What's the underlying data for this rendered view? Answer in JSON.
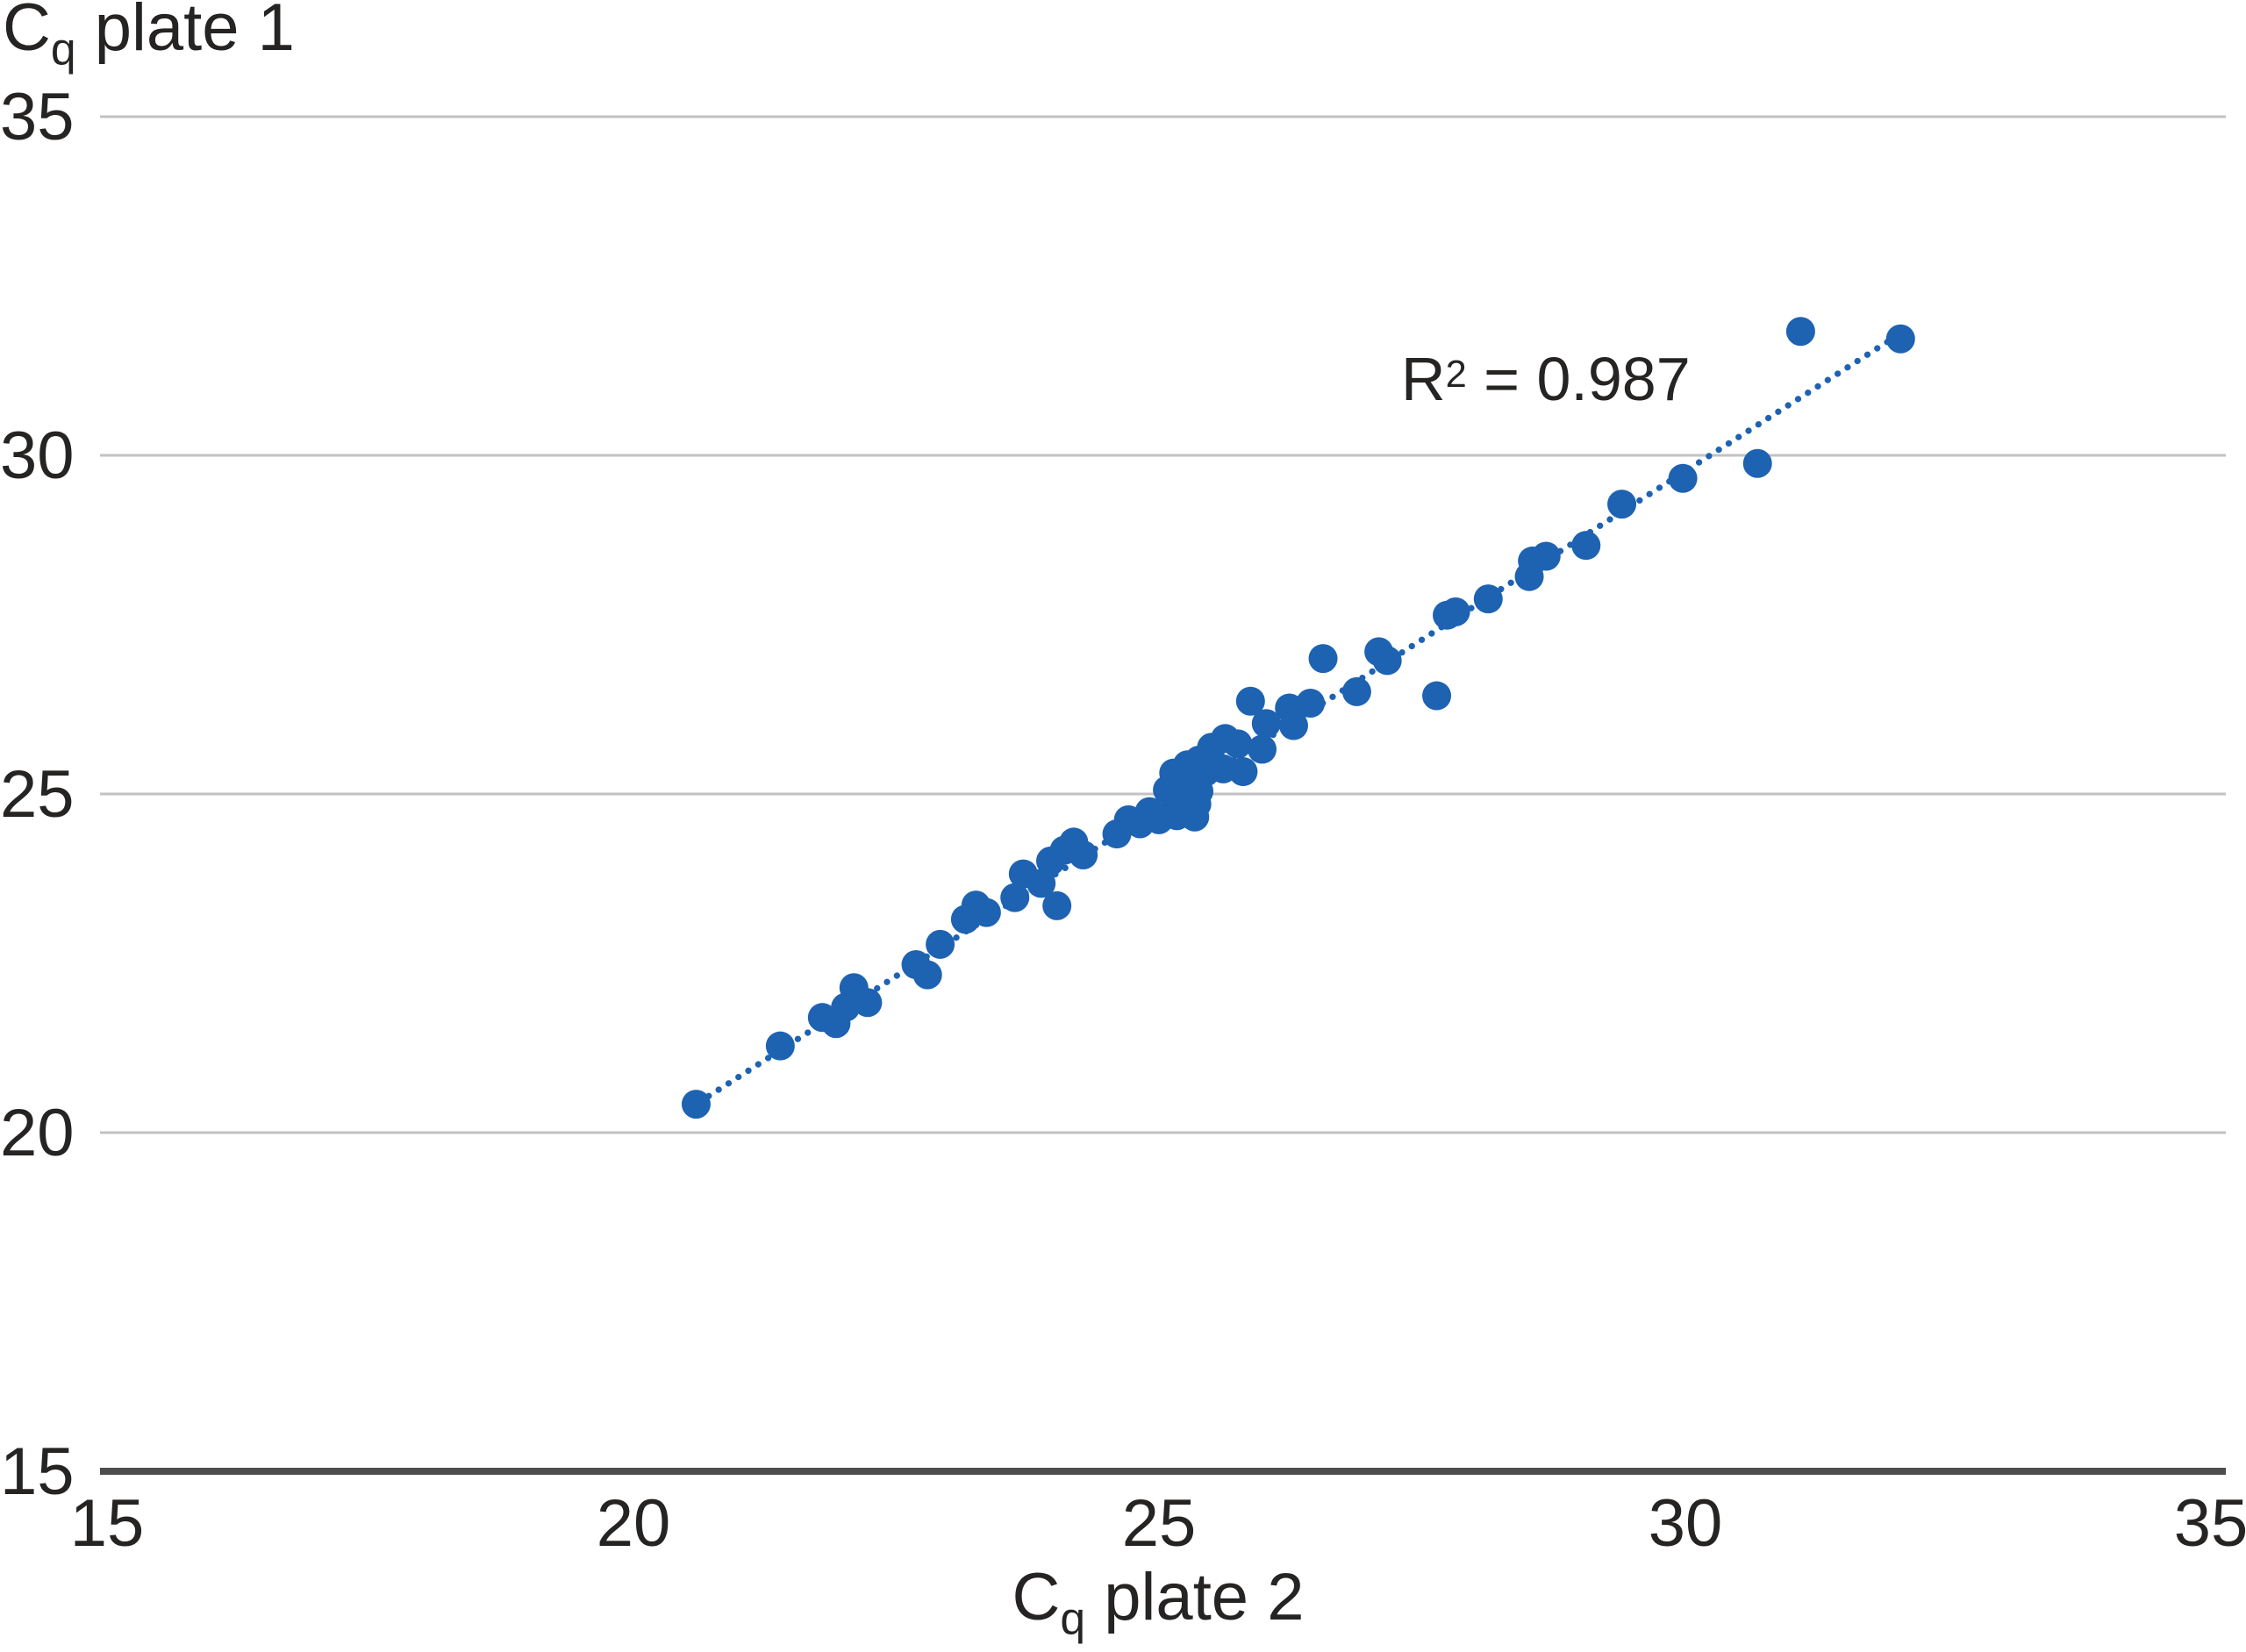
{
  "chart_data": {
    "type": "scatter",
    "title": "",
    "xlabel": "Cq plate 2",
    "ylabel": "Cq plate 1",
    "xlabel_parts": {
      "base": "C",
      "sub": "q",
      "rest": " plate 2"
    },
    "ylabel_parts": {
      "base": "C",
      "sub": "q",
      "rest": " plate 1"
    },
    "annotation": {
      "full_text": "R2 = 0.987",
      "base": "R",
      "sup": "2",
      "rest": " = 0.987",
      "x": 27.3,
      "y": 30.9
    },
    "xlim": [
      15,
      35
    ],
    "ylim": [
      15,
      35
    ],
    "xticks": [
      15,
      20,
      25,
      30,
      35
    ],
    "yticks": [
      15,
      20,
      25,
      30,
      35
    ],
    "grid": "horizontal",
    "legend": "none",
    "colors": {
      "point": "#1e62b2",
      "trendline": "#1e62b2",
      "gridline": "#c2c2c2",
      "axis_line": "#4d4d4d",
      "text": "#262423"
    },
    "trendline": {
      "style": "dotted",
      "x1": 20.72,
      "y1": 20.54,
      "x2": 31.98,
      "y2": 31.73,
      "r_squared": 0.987
    },
    "points": [
      [
        20.6,
        20.42
      ],
      [
        21.4,
        21.28
      ],
      [
        21.8,
        21.7
      ],
      [
        21.93,
        21.61
      ],
      [
        22.02,
        21.85
      ],
      [
        22.1,
        22.14
      ],
      [
        22.23,
        21.92
      ],
      [
        22.69,
        22.48
      ],
      [
        22.8,
        22.33
      ],
      [
        22.92,
        22.78
      ],
      [
        23.16,
        23.15
      ],
      [
        23.26,
        23.36
      ],
      [
        23.36,
        23.25
      ],
      [
        23.63,
        23.47
      ],
      [
        23.71,
        23.82
      ],
      [
        23.88,
        23.68
      ],
      [
        23.97,
        24.01
      ],
      [
        24.03,
        23.35
      ],
      [
        24.1,
        24.17
      ],
      [
        24.19,
        24.29
      ],
      [
        24.28,
        24.1
      ],
      [
        24.6,
        24.41
      ],
      [
        24.71,
        24.62
      ],
      [
        24.82,
        24.56
      ],
      [
        24.91,
        24.74
      ],
      [
        25.0,
        24.62
      ],
      [
        25.08,
        25.06
      ],
      [
        25.14,
        25.31
      ],
      [
        25.17,
        24.68
      ],
      [
        25.21,
        24.81
      ],
      [
        25.21,
        25.19
      ],
      [
        25.27,
        25.43
      ],
      [
        25.34,
        24.66
      ],
      [
        25.36,
        24.85
      ],
      [
        25.38,
        25.04
      ],
      [
        25.38,
        25.5
      ],
      [
        25.44,
        25.32
      ],
      [
        25.5,
        25.69
      ],
      [
        25.61,
        25.37
      ],
      [
        25.63,
        25.82
      ],
      [
        25.75,
        25.74
      ],
      [
        25.8,
        25.33
      ],
      [
        25.87,
        26.37
      ],
      [
        25.98,
        25.66
      ],
      [
        26.02,
        26.04
      ],
      [
        26.24,
        26.27
      ],
      [
        26.28,
        26.01
      ],
      [
        26.44,
        26.34
      ],
      [
        26.56,
        27.0
      ],
      [
        26.88,
        26.51
      ],
      [
        27.09,
        27.1
      ],
      [
        27.17,
        26.97
      ],
      [
        27.64,
        26.45
      ],
      [
        27.74,
        27.64
      ],
      [
        27.82,
        27.69
      ],
      [
        28.13,
        27.88
      ],
      [
        28.52,
        28.21
      ],
      [
        28.55,
        28.44
      ],
      [
        28.68,
        28.51
      ],
      [
        29.06,
        28.67
      ],
      [
        29.4,
        29.28
      ],
      [
        29.98,
        29.66
      ],
      [
        30.69,
        29.88
      ],
      [
        31.1,
        31.83
      ],
      [
        32.05,
        31.72
      ]
    ]
  }
}
